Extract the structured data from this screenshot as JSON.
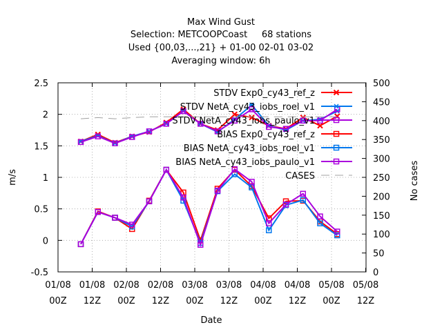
{
  "chart_data": {
    "type": "line",
    "title_lines": [
      "Max Wind Gust",
      "Selection: METCOOPCoast     68 stations",
      "Used {00,03,...,21} + 01-00 02-01 03-02",
      "Averaging window:  6h"
    ],
    "xlabel": "Date",
    "ylabel": "m/s",
    "y2label": "No cases",
    "xlim": [
      0,
      24
    ],
    "ylim": [
      -0.5,
      2.5
    ],
    "y2lim": [
      0,
      500
    ],
    "x_ticks": [
      {
        "x": 0,
        "line1": "01/08",
        "line2": "00Z"
      },
      {
        "x": 3,
        "line1": "01/08",
        "line2": "12Z"
      },
      {
        "x": 6,
        "line1": "02/08",
        "line2": "00Z"
      },
      {
        "x": 9,
        "line1": "02/08",
        "line2": "12Z"
      },
      {
        "x": 12,
        "line1": "03/08",
        "line2": "00Z"
      },
      {
        "x": 15,
        "line1": "03/08",
        "line2": "12Z"
      },
      {
        "x": 18,
        "line1": "04/08",
        "line2": "00Z"
      },
      {
        "x": 21,
        "line1": "04/08",
        "line2": "12Z"
      },
      {
        "x": 24,
        "line1": "05/08",
        "line2": "00Z"
      },
      {
        "x": 27,
        "line1": "05/08",
        "line2": "12Z"
      }
    ],
    "y_ticks": [
      "-0.5",
      "0",
      "0.5",
      "1",
      "1.5",
      "2",
      "2.5"
    ],
    "y2_ticks": [
      "0",
      "50",
      "100",
      "150",
      "200",
      "250",
      "300",
      "350",
      "400",
      "450",
      "500"
    ],
    "grid": true,
    "legend_position": "top-right",
    "x": [
      2,
      3.5,
      5,
      6.5,
      8,
      9.5,
      11,
      12.5,
      14,
      15.5,
      17,
      18.5,
      20,
      21.5,
      23,
      24.5
    ],
    "series": [
      {
        "name": "STDV Exp0_cy43_ref_z",
        "color": "#ff0000",
        "marker": "x",
        "axis": "y1",
        "values": [
          1.57,
          1.68,
          1.55,
          1.65,
          1.72,
          1.87,
          2.08,
          1.85,
          1.75,
          2.0,
          1.95,
          1.82,
          1.77,
          1.95,
          1.82,
          1.97
        ]
      },
      {
        "name": "STDV NetA_cy43_iobs_roel_v1",
        "color": "#0077ee",
        "marker": "asterisk",
        "axis": "y1",
        "values": [
          1.57,
          1.66,
          1.54,
          1.65,
          1.73,
          1.85,
          2.05,
          1.85,
          1.72,
          1.92,
          2.15,
          1.82,
          1.75,
          1.9,
          1.92,
          2.05
        ]
      },
      {
        "name": "STDV NetA_cy43_iobs_paulo_v1",
        "color": "#aa00dd",
        "marker": "square",
        "axis": "y1",
        "values": [
          1.56,
          1.65,
          1.54,
          1.64,
          1.73,
          1.85,
          2.05,
          1.85,
          1.73,
          1.9,
          2.08,
          1.8,
          1.77,
          1.9,
          1.9,
          2.08
        ]
      },
      {
        "name": "BIAS Exp0_cy43_ref_z",
        "color": "#ff0000",
        "marker": "square",
        "axis": "y1",
        "values": [
          -0.06,
          0.46,
          0.36,
          0.18,
          0.63,
          1.12,
          0.76,
          0.0,
          0.82,
          1.12,
          0.86,
          0.35,
          0.62,
          0.63,
          0.3,
          0.1
        ]
      },
      {
        "name": "BIAS NetA_cy43_iobs_roel_v1",
        "color": "#0077ee",
        "marker": "square",
        "axis": "y1",
        "values": [
          -0.06,
          0.45,
          0.36,
          0.22,
          0.62,
          1.12,
          0.63,
          -0.04,
          0.78,
          1.05,
          0.84,
          0.16,
          0.56,
          0.64,
          0.27,
          0.08
        ]
      },
      {
        "name": "BIAS NetA_cy43_iobs_paulo_v1",
        "color": "#aa00dd",
        "marker": "square",
        "axis": "y1",
        "values": [
          -0.06,
          0.45,
          0.36,
          0.25,
          0.62,
          1.12,
          0.68,
          -0.07,
          0.79,
          1.13,
          0.93,
          0.27,
          0.57,
          0.74,
          0.38,
          0.14
        ]
      },
      {
        "name": "CASES",
        "color": "#a0a0a0",
        "dash": true,
        "axis": "y2",
        "values": [
          405,
          408,
          405,
          408,
          410,
          410,
          410,
          410,
          410,
          410,
          410,
          410,
          410,
          410,
          410,
          410
        ]
      }
    ]
  }
}
